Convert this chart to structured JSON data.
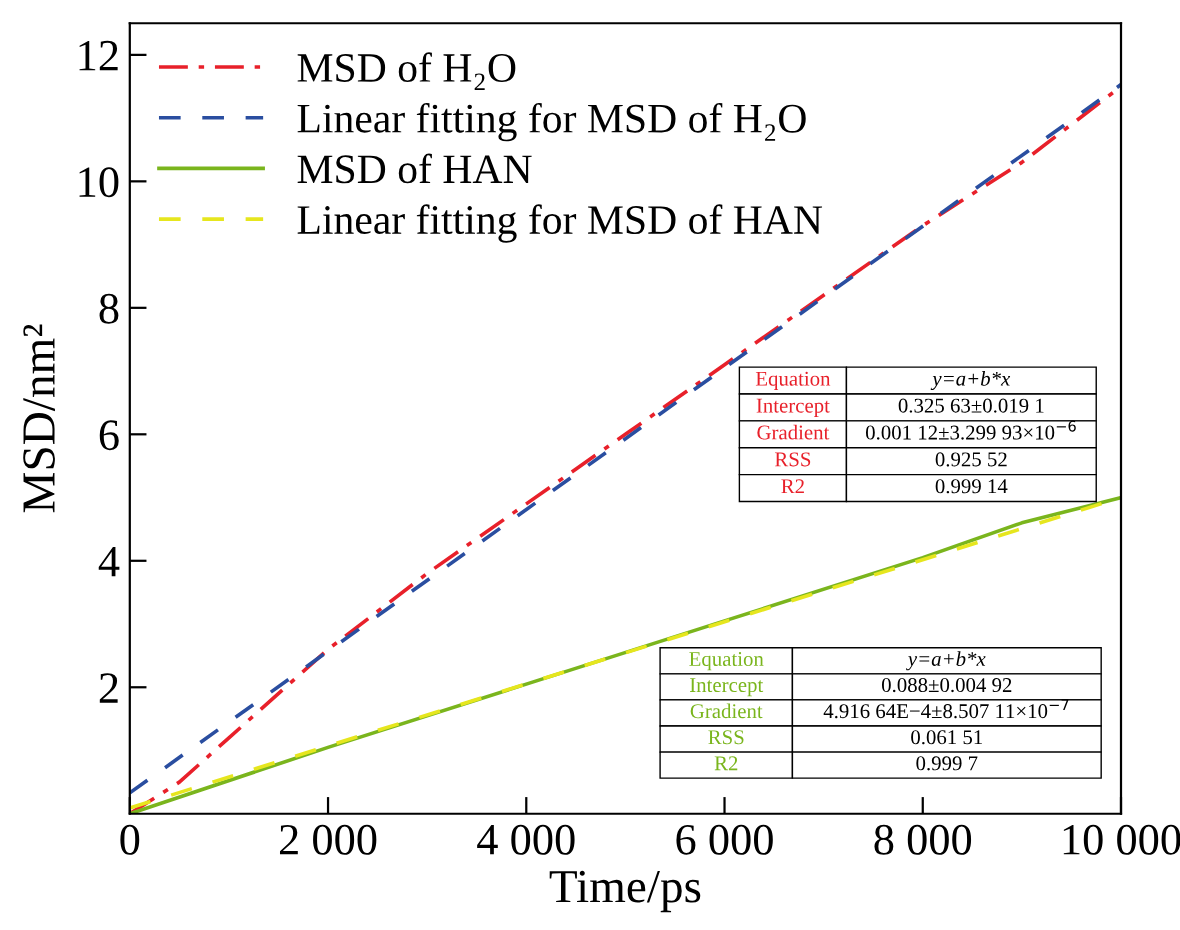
{
  "chart_data": {
    "type": "line",
    "xlabel": "Time/ps",
    "ylabel": "MSD/nm²",
    "xlim": [
      0,
      10000
    ],
    "ylim": [
      0,
      12.5
    ],
    "xticks": [
      0,
      {
        "value": 2000,
        "label": "2 000"
      },
      {
        "value": 4000,
        "label": "4 000"
      },
      {
        "value": 6000,
        "label": "6 000"
      },
      {
        "value": 8000,
        "label": "8 000"
      },
      {
        "value": 10000,
        "label": "10 000"
      }
    ],
    "yticks": [
      2,
      4,
      6,
      8,
      10,
      12
    ],
    "grid": false,
    "legend": "top left",
    "marker": "none",
    "series": [
      {
        "name": "MSD of H₂O",
        "color": "#e8202a",
        "line_style": "dashdot",
        "x": [
          0,
          500,
          1000,
          2000,
          3000,
          4000,
          5000,
          6000,
          7000,
          8000,
          9000,
          10000
        ],
        "values": [
          0,
          0.5,
          1.2,
          2.6,
          3.8,
          4.9,
          6.0,
          7.1,
          8.2,
          9.3,
          10.3,
          11.5
        ]
      },
      {
        "name": "Linear fitting for MSD of H₂O",
        "color": "#2a4ea0",
        "line_style": "dashed",
        "x": [
          0,
          10000
        ],
        "values": [
          0.33,
          11.53
        ]
      },
      {
        "name": "MSD of HAN",
        "color": "#7ab51d",
        "line_style": "solid",
        "x": [
          0,
          2000,
          4000,
          6000,
          8000,
          9000,
          10000
        ],
        "values": [
          0,
          1.05,
          2.05,
          3.05,
          4.05,
          4.6,
          5.0
        ]
      },
      {
        "name": "Linear fitting for MSD of HAN",
        "color": "#e6e61e",
        "line_style": "dashed",
        "x": [
          0,
          10000
        ],
        "values": [
          0.09,
          5.0
        ]
      }
    ],
    "annotations": [
      "Equation",
      "y=a+b*x",
      "Intercept",
      "0.325 63±0.019 1",
      "Gradient",
      "0.001 12±3.299 93×10$^{−6}$",
      "RSS",
      "0.925 52",
      "R2",
      "0.999 14",
      "Equation",
      "y=a+b*x",
      "Intercept",
      "0.088±0.004 92",
      "Gradient",
      "4.916 64E−4±8.507 11×10$^{−7}$",
      "RSS",
      "0.061 51",
      "R2",
      "0.999 7"
    ]
  }
}
